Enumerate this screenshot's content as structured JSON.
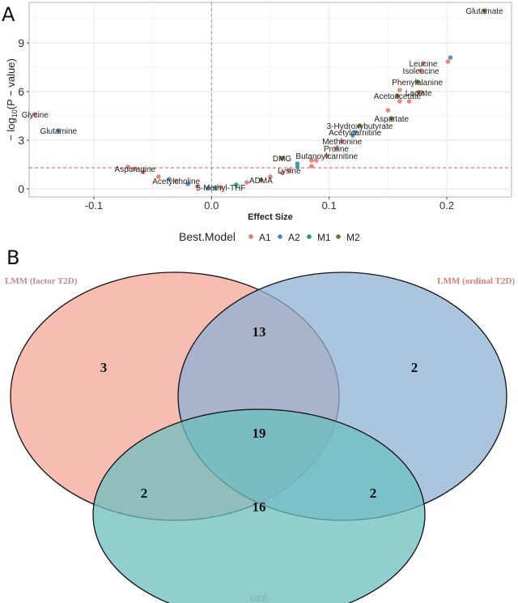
{
  "chart_data": [
    {
      "type": "scatter",
      "panel_label": "A",
      "title": "",
      "xlabel": "Effect Size",
      "ylabel": "− log10(P − value)",
      "ylabel_parts": {
        "prefix": "− log",
        "subscript": "10",
        "suffix": "(P − value)"
      },
      "xlim": [
        -0.155,
        0.255
      ],
      "ylim": [
        -0.5,
        11.5
      ],
      "xticks": [
        -0.1,
        0.0,
        0.1,
        0.2
      ],
      "xtick_labels": [
        "-0.1",
        "0.0",
        "0.1",
        "0.2"
      ],
      "yticks": [
        0,
        3,
        6,
        9
      ],
      "ytick_labels": [
        "0",
        "3",
        "6",
        "9"
      ],
      "grid": true,
      "vline_x": 0.0,
      "hline_y": 1.3,
      "legend": {
        "title": "Best.Model",
        "placement": "bottom",
        "entries": [
          {
            "name": "A1",
            "color": "#E07A6A"
          },
          {
            "name": "A2",
            "color": "#4A86B8"
          },
          {
            "name": "M1",
            "color": "#1C9A8A"
          },
          {
            "name": "M2",
            "color": "#7A6A2A"
          }
        ]
      },
      "points": [
        {
          "label": "Glutamate",
          "x": 0.232,
          "y": 11.0,
          "model": "M2"
        },
        {
          "label": "",
          "x": 0.203,
          "y": 8.1,
          "model": "A2"
        },
        {
          "label": "",
          "x": 0.201,
          "y": 7.85,
          "model": "A1"
        },
        {
          "label": "Leucine",
          "x": 0.18,
          "y": 7.75,
          "model": "A1"
        },
        {
          "label": "Isoleucine",
          "x": 0.178,
          "y": 7.3,
          "model": "A1"
        },
        {
          "label": "Phenylalanine",
          "x": 0.175,
          "y": 6.6,
          "model": "M2"
        },
        {
          "label": "Lactate",
          "x": 0.176,
          "y": 5.95,
          "model": "M2"
        },
        {
          "label": "",
          "x": 0.179,
          "y": 5.95,
          "model": "A1"
        },
        {
          "label": "Acetoacetate",
          "x": 0.158,
          "y": 5.75,
          "model": "M2"
        },
        {
          "label": "",
          "x": 0.16,
          "y": 6.1,
          "model": "A1"
        },
        {
          "label": "",
          "x": 0.16,
          "y": 5.4,
          "model": "A1"
        },
        {
          "label": "",
          "x": 0.168,
          "y": 5.4,
          "model": "A1"
        },
        {
          "label": "",
          "x": 0.15,
          "y": 4.85,
          "model": "A1"
        },
        {
          "label": "Aspartate",
          "x": 0.153,
          "y": 4.35,
          "model": "M2"
        },
        {
          "label": "3-Hydroxybutyrate",
          "x": 0.126,
          "y": 3.9,
          "model": "M2"
        },
        {
          "label": "Acetylcarnitine",
          "x": 0.122,
          "y": 3.5,
          "model": "A2"
        },
        {
          "label": "",
          "x": 0.12,
          "y": 3.3,
          "model": "A2"
        },
        {
          "label": "Methionine",
          "x": 0.111,
          "y": 2.95,
          "model": "A1"
        },
        {
          "label": "Proline",
          "x": 0.106,
          "y": 2.5,
          "model": "A1"
        },
        {
          "label": "Butanoylcarnitine",
          "x": 0.098,
          "y": 2.05,
          "model": "A1"
        },
        {
          "label": "",
          "x": 0.089,
          "y": 1.75,
          "model": "A1"
        },
        {
          "label": "",
          "x": 0.085,
          "y": 1.75,
          "model": "A1"
        },
        {
          "label": "",
          "x": 0.085,
          "y": 1.4,
          "model": "A1"
        },
        {
          "label": "DMG",
          "x": 0.06,
          "y": 1.9,
          "model": "M2"
        },
        {
          "label": "",
          "x": 0.073,
          "y": 1.55,
          "model": "M1"
        },
        {
          "label": "",
          "x": 0.073,
          "y": 1.35,
          "model": "A2"
        },
        {
          "label": "Lysine",
          "x": 0.066,
          "y": 1.15,
          "model": "A1"
        },
        {
          "label": "",
          "x": 0.06,
          "y": 1.0,
          "model": "A1"
        },
        {
          "label": "",
          "x": 0.05,
          "y": 0.75,
          "model": "A1"
        },
        {
          "label": "ADMA",
          "x": 0.042,
          "y": 0.55,
          "model": "M2"
        },
        {
          "label": "",
          "x": 0.03,
          "y": 0.4,
          "model": "A1"
        },
        {
          "label": "",
          "x": 0.021,
          "y": 0.25,
          "model": "M1"
        },
        {
          "label": "5-Methyl-THF",
          "x": 0.008,
          "y": 0.1,
          "model": "A1"
        },
        {
          "label": "",
          "x": 0.003,
          "y": 0.05,
          "model": "A2"
        },
        {
          "label": "",
          "x": -0.003,
          "y": 0.05,
          "model": "A2"
        },
        {
          "label": "",
          "x": -0.012,
          "y": 0.15,
          "model": "A1"
        },
        {
          "label": "",
          "x": -0.02,
          "y": 0.3,
          "model": "A2"
        },
        {
          "label": "Acetylcholine",
          "x": -0.03,
          "y": 0.5,
          "model": "A1"
        },
        {
          "label": "",
          "x": -0.036,
          "y": 0.6,
          "model": "A2"
        },
        {
          "label": "",
          "x": -0.045,
          "y": 0.75,
          "model": "A1"
        },
        {
          "label": "",
          "x": -0.058,
          "y": 1.05,
          "model": "A1"
        },
        {
          "label": "Asparagine",
          "x": -0.065,
          "y": 1.25,
          "model": "A1"
        },
        {
          "label": "",
          "x": -0.071,
          "y": 1.35,
          "model": "A1"
        },
        {
          "label": "Glycine",
          "x": -0.15,
          "y": 4.6,
          "model": "A1"
        },
        {
          "label": "Glutamine",
          "x": -0.13,
          "y": 3.6,
          "model": "A2"
        }
      ]
    },
    {
      "type": "venn",
      "panel_label": "B",
      "sets": [
        {
          "name": "LMM (factor T2D)",
          "color": "#F4A79A",
          "label_color": "#C98A8A"
        },
        {
          "name": "LMM (ordinal T2D)",
          "color": "#8FB2D4",
          "label_color": "#D7806A"
        },
        {
          "name": "GEE",
          "color": "#6CBFBF",
          "label_color": "#8AAFB0"
        }
      ],
      "regions": {
        "factor_only": 3,
        "ordinal_only": 2,
        "gee_only": 16,
        "factor_ordinal": 13,
        "factor_gee": 2,
        "ordinal_gee": 2,
        "all_three": 19
      }
    }
  ]
}
